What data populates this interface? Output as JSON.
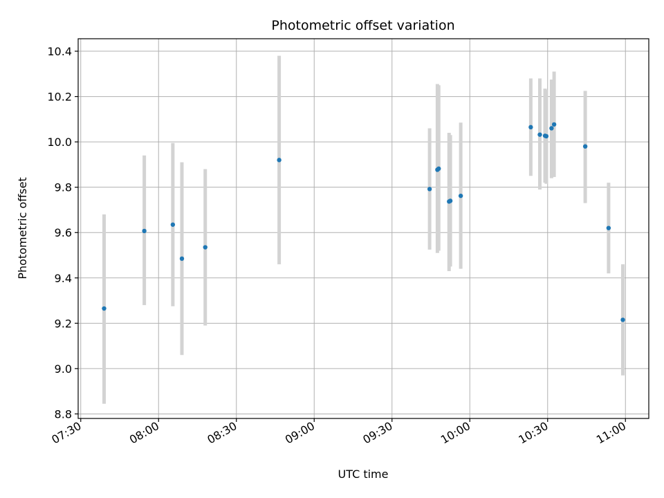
{
  "chart_data": {
    "type": "scatter",
    "title": "Photometric offset variation",
    "xlabel": "UTC time",
    "ylabel": "Photometric offset",
    "xlim": [
      "07:29",
      "11:09"
    ],
    "ylim": [
      8.78,
      10.455
    ],
    "grid": true,
    "legend": "none",
    "x_ticks": [
      "07:30",
      "08:00",
      "08:30",
      "09:00",
      "09:30",
      "10:00",
      "10:30",
      "11:00"
    ],
    "y_ticks": [
      8.8,
      9.0,
      9.2,
      9.4,
      9.6,
      9.8,
      10.0,
      10.2,
      10.4
    ],
    "y_tick_labels": [
      "8.8",
      "9.0",
      "9.2",
      "9.4",
      "9.6",
      "9.8",
      "10.0",
      "10.2",
      "10.4"
    ],
    "colors": {
      "point": "#1f77b4",
      "errorbar": "#d3d3d3",
      "grid": "#b0b0b0"
    },
    "points": [
      {
        "x": "07:39:00",
        "y": 9.265,
        "y_low": 8.845,
        "y_high": 9.68
      },
      {
        "x": "07:54:30",
        "y": 9.607,
        "y_low": 9.28,
        "y_high": 9.94
      },
      {
        "x": "08:05:30",
        "y": 9.635,
        "y_low": 9.275,
        "y_high": 9.995
      },
      {
        "x": "08:09:00",
        "y": 9.485,
        "y_low": 9.06,
        "y_high": 9.91
      },
      {
        "x": "08:18:00",
        "y": 9.535,
        "y_low": 9.19,
        "y_high": 9.88
      },
      {
        "x": "08:46:30",
        "y": 9.92,
        "y_low": 9.46,
        "y_high": 10.38
      },
      {
        "x": "09:44:30",
        "y": 9.792,
        "y_low": 9.525,
        "y_high": 10.06
      },
      {
        "x": "09:47:30",
        "y": 9.877,
        "y_low": 9.51,
        "y_high": 10.255
      },
      {
        "x": "09:48:00",
        "y": 9.882,
        "y_low": 9.52,
        "y_high": 10.25
      },
      {
        "x": "09:52:00",
        "y": 9.737,
        "y_low": 9.43,
        "y_high": 10.04
      },
      {
        "x": "09:52:30",
        "y": 9.74,
        "y_low": 9.45,
        "y_high": 10.03
      },
      {
        "x": "09:56:30",
        "y": 9.762,
        "y_low": 9.44,
        "y_high": 10.085
      },
      {
        "x": "10:23:30",
        "y": 10.065,
        "y_low": 9.85,
        "y_high": 10.28
      },
      {
        "x": "10:27:00",
        "y": 10.032,
        "y_low": 9.79,
        "y_high": 10.28
      },
      {
        "x": "10:29:00",
        "y": 10.027,
        "y_low": 9.82,
        "y_high": 10.235
      },
      {
        "x": "10:29:30",
        "y": 10.025,
        "y_low": 9.815,
        "y_high": 10.23
      },
      {
        "x": "10:31:30",
        "y": 10.06,
        "y_low": 9.84,
        "y_high": 10.275
      },
      {
        "x": "10:32:30",
        "y": 10.077,
        "y_low": 9.845,
        "y_high": 10.31
      },
      {
        "x": "10:44:30",
        "y": 9.98,
        "y_low": 9.73,
        "y_high": 10.225
      },
      {
        "x": "10:53:30",
        "y": 9.62,
        "y_low": 9.42,
        "y_high": 9.82
      },
      {
        "x": "10:59:00",
        "y": 9.215,
        "y_low": 8.97,
        "y_high": 9.46
      }
    ]
  }
}
